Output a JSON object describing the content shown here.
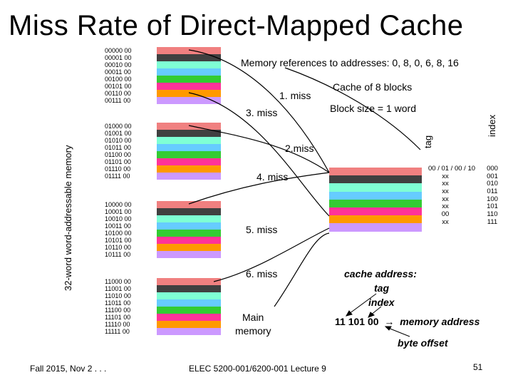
{
  "title": "Miss Rate of Direct-Mapped Cache",
  "vertical_label": "32-word word-addressable memory",
  "colors": [
    "#f08080",
    "#404040",
    "#7fffd4",
    "#66ccff",
    "#33cc33",
    "#ff3399",
    "#ff9900",
    "#cc99ff"
  ],
  "memory_groups": [
    [
      "00000 00",
      "00001 00",
      "00010 00",
      "00011 00",
      "00100 00",
      "00101 00",
      "00110 00",
      "00111 00"
    ],
    [
      "01000 00",
      "01001 00",
      "01010 00",
      "01011 00",
      "01100 00",
      "01101 00",
      "01110 00",
      "01111 00"
    ],
    [
      "10000 00",
      "10001 00",
      "10010 00",
      "10011 00",
      "10100 00",
      "10101 00",
      "10110 00",
      "10111 00"
    ],
    [
      "11000 00",
      "11001 00",
      "11010 00",
      "11011 00",
      "11100 00",
      "11101 00",
      "11110 00",
      "11111 00"
    ]
  ],
  "refs_text": "Memory references to addresses: 0, 8, 0, 6, 8, 16",
  "cache_title": "Cache of 8 blocks",
  "block_size": "Block size = 1 word",
  "miss1": "1. miss",
  "miss2": "2.miss",
  "miss3": "3. miss",
  "miss4": "4. miss",
  "miss5": "5. miss",
  "miss6": "6. miss",
  "main_memory_line1": "Main",
  "main_memory_line2": "memory",
  "tag_header": "tag",
  "index_header": "index",
  "tags": [
    "00 / 01 / 00 / 10",
    "xx",
    "xx",
    "xx",
    "xx",
    "xx",
    "00",
    "xx"
  ],
  "indices": [
    "000",
    "001",
    "010",
    "011",
    "100",
    "101",
    "110",
    "111"
  ],
  "cache_address": "cache address:",
  "tag_label": "tag",
  "index_label": "index",
  "address_example": "11 101 00",
  "arrow": "→",
  "memory_address": "memory address",
  "byte_offset": "byte offset",
  "footer_left": "Fall 2015, Nov 2 . . .",
  "footer_center": "ELEC 5200-001/6200-001 Lecture 9",
  "page_number": "51"
}
